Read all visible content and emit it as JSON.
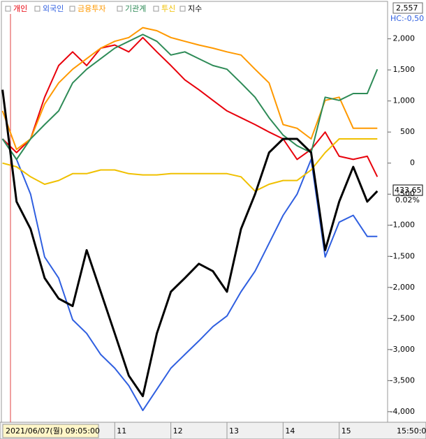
{
  "chart_data": {
    "type": "line",
    "x": [
      9.0,
      9.25,
      9.5,
      9.75,
      10.0,
      10.25,
      10.5,
      10.75,
      11.0,
      11.25,
      11.5,
      11.75,
      12.0,
      12.25,
      12.5,
      12.75,
      13.0,
      13.25,
      13.5,
      13.75,
      14.0,
      14.25,
      14.5,
      14.75,
      15.0,
      15.25,
      15.5,
      15.68
    ],
    "series": [
      {
        "name": "개인",
        "color": "#e8000b",
        "values": [
          390,
          170,
          390,
          1060,
          1570,
          1790,
          1570,
          1850,
          1900,
          1790,
          2020,
          1790,
          1570,
          1340,
          1180,
          1010,
          840,
          730,
          620,
          500,
          390,
          60,
          220,
          500,
          110,
          60,
          110,
          -220
        ]
      },
      {
        "name": "외국인",
        "color": "#2f5fe0",
        "values": [
          390,
          60,
          -500,
          -1510,
          -1850,
          -2520,
          -2740,
          -3080,
          -3300,
          -3580,
          -3980,
          -3640,
          -3300,
          -3080,
          -2860,
          -2630,
          -2460,
          -2070,
          -1740,
          -1290,
          -840,
          -500,
          60,
          -1510,
          -950,
          -840,
          -1180,
          -1180
        ]
      },
      {
        "name": "금융투자",
        "color": "#ff9900",
        "values": [
          840,
          220,
          390,
          950,
          1290,
          1510,
          1680,
          1850,
          1960,
          2020,
          2180,
          2130,
          2020,
          1960,
          1900,
          1850,
          1790,
          1740,
          1510,
          1290,
          620,
          560,
          390,
          1010,
          1060,
          560,
          560,
          560
        ]
      },
      {
        "name": "기관계",
        "color": "#2e8b57",
        "values": [
          390,
          60,
          390,
          620,
          840,
          1290,
          1510,
          1680,
          1850,
          1960,
          2070,
          1960,
          1740,
          1790,
          1680,
          1570,
          1510,
          1290,
          1060,
          730,
          450,
          280,
          170,
          1060,
          1010,
          1120,
          1120,
          1510
        ]
      },
      {
        "name": "투신",
        "color": "#f0c000",
        "values": [
          0,
          -60,
          -220,
          -340,
          -280,
          -170,
          -170,
          -110,
          -110,
          -170,
          -190,
          -190,
          -170,
          -170,
          -170,
          -170,
          -170,
          -220,
          -450,
          -340,
          -280,
          -280,
          -110,
          170,
          390,
          390,
          390,
          390
        ]
      },
      {
        "name": "지수",
        "color": "#000000",
        "values": [
          1180,
          -620,
          -1060,
          -1850,
          -2180,
          -2300,
          -1400,
          -2070,
          -2740,
          -3420,
          -3750,
          -2740,
          -2070,
          -1850,
          -1620,
          -1740,
          -2070,
          -1060,
          -500,
          170,
          390,
          390,
          170,
          -1400,
          -620,
          -60,
          -620,
          -450
        ]
      }
    ],
    "xlim": [
      8.98,
      15.85
    ],
    "xticks": [
      11,
      12,
      13,
      14,
      15
    ],
    "ylim": [
      -4170,
      2400
    ],
    "yticks": [
      {
        "value": 2000,
        "label": "2,000"
      },
      {
        "value": 1500,
        "label": "1,500"
      },
      {
        "value": 1000,
        "label": "1,000"
      },
      500,
      0,
      -500,
      {
        "value": -1000,
        "label": "-1,000"
      },
      {
        "value": -1500,
        "label": "-1,500"
      },
      {
        "value": -2000,
        "label": "-2,000"
      },
      {
        "value": -2500,
        "label": "-2,500"
      },
      {
        "value": -3000,
        "label": "-3,000"
      },
      {
        "value": -3500,
        "label": "-3,500"
      },
      {
        "value": -4000,
        "label": "-4,000"
      }
    ],
    "x_start_label": "2021/06/07(월) 09:05:00",
    "x_end_label": "15:50:0",
    "annotations": {
      "top_value": "2,557",
      "hc": "HC:-0,50",
      "index_value": "433.65",
      "index_change": "0.02%"
    }
  }
}
